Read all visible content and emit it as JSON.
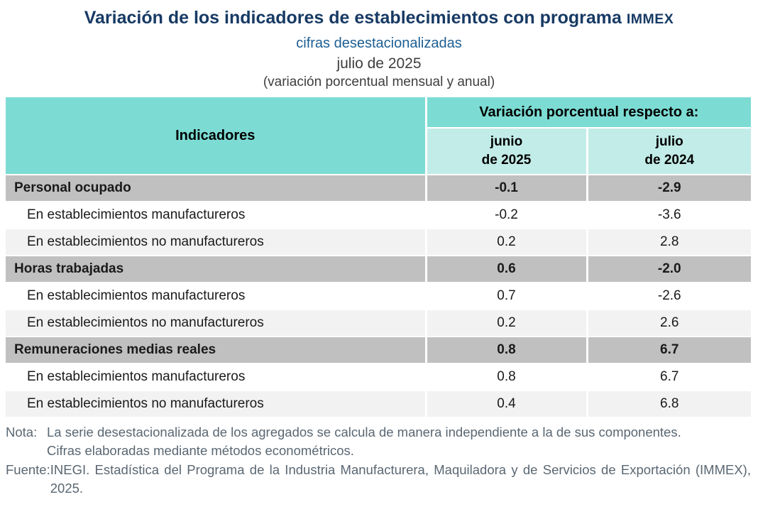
{
  "header": {
    "title": "Variación de los indicadores de establecimientos con programa",
    "title_acronym": "IMMEX",
    "subtitle": "cifras desestacionalizadas",
    "period": "julio de 2025",
    "measure_note": "(variación porcentual mensual y anual)"
  },
  "table": {
    "col_indicators": "Indicadores",
    "col_group": "Variación porcentual respecto a:",
    "col_junio": "junio\nde 2025",
    "col_julio": "julio\nde 2024",
    "rows": [
      {
        "label": "Personal ocupado",
        "junio": "-0.1",
        "julio": "-2.9"
      },
      {
        "label": "En establecimientos manufactureros",
        "junio": "-0.2",
        "julio": "-3.6"
      },
      {
        "label": "En establecimientos no manufactureros",
        "junio": "0.2",
        "julio": "2.8"
      },
      {
        "label": "Horas trabajadas",
        "junio": "0.6",
        "julio": "-2.0"
      },
      {
        "label": "En establecimientos manufactureros",
        "junio": "0.7",
        "julio": "-2.6"
      },
      {
        "label": "En establecimientos no manufactureros",
        "junio": "0.2",
        "julio": "2.6"
      },
      {
        "label": "Remuneraciones medias reales",
        "junio": "0.8",
        "julio": "6.7"
      },
      {
        "label": "En establecimientos manufactureros",
        "junio": "0.8",
        "julio": "6.7"
      },
      {
        "label": "En establecimientos no manufactureros",
        "junio": "0.4",
        "julio": "6.8"
      }
    ]
  },
  "notes": {
    "nota_label": "Nota:",
    "nota_line1": "La serie desestacionalizada de los agregados se calcula de manera independiente a la de sus componentes.",
    "nota_line2": "Cifras elaboradas mediante métodos econométricos.",
    "fuente_label": "Fuente:",
    "fuente_text": "INEGI. Estadística del Programa de la Industria Manufacturera, Maquiladora y de Servicios de Exportación (IMMEX), 2025."
  },
  "colors": {
    "teal": "#7cdcd4",
    "teal-light": "#c2ece8",
    "row-gray": "#c0c0c0",
    "row-alt": "#f2f2f2",
    "title-navy": "#173a64",
    "subtitle-blue": "#1d5e93",
    "heading-gray": "#3e3e3e",
    "note-gray": "#5a6772"
  },
  "chart_data": {
    "type": "table",
    "title": "Variación de los indicadores de establecimientos con programa IMMEX",
    "subtitle": "cifras desestacionalizadas, julio de 2025 (variación porcentual mensual y anual)",
    "columns": [
      "Indicadores",
      "junio de 2025",
      "julio de 2024"
    ],
    "rows": [
      {
        "indicator": "Personal ocupado",
        "vs_junio_2025": -0.1,
        "vs_julio_2024": -2.9,
        "is_group": true
      },
      {
        "indicator": "En establecimientos manufactureros",
        "vs_junio_2025": -0.2,
        "vs_julio_2024": -3.6,
        "is_group": false
      },
      {
        "indicator": "En establecimientos no manufactureros",
        "vs_junio_2025": 0.2,
        "vs_julio_2024": 2.8,
        "is_group": false
      },
      {
        "indicator": "Horas trabajadas",
        "vs_junio_2025": 0.6,
        "vs_julio_2024": -2.0,
        "is_group": true
      },
      {
        "indicator": "En establecimientos manufactureros",
        "vs_junio_2025": 0.7,
        "vs_julio_2024": -2.6,
        "is_group": false
      },
      {
        "indicator": "En establecimientos no manufactureros",
        "vs_junio_2025": 0.2,
        "vs_julio_2024": 2.6,
        "is_group": false
      },
      {
        "indicator": "Remuneraciones medias reales",
        "vs_junio_2025": 0.8,
        "vs_julio_2024": 6.7,
        "is_group": true
      },
      {
        "indicator": "En establecimientos manufactureros",
        "vs_junio_2025": 0.8,
        "vs_julio_2024": 6.7,
        "is_group": false
      },
      {
        "indicator": "En establecimientos no manufactureros",
        "vs_junio_2025": 0.4,
        "vs_julio_2024": 6.8,
        "is_group": false
      }
    ],
    "notes": [
      "La serie desestacionalizada de los agregados se calcula de manera independiente a la de sus componentes.",
      "Cifras elaboradas mediante métodos econométricos."
    ],
    "source": "INEGI. Estadística del Programa de la Industria Manufacturera, Maquiladora y de Servicios de Exportación (IMMEX), 2025."
  }
}
